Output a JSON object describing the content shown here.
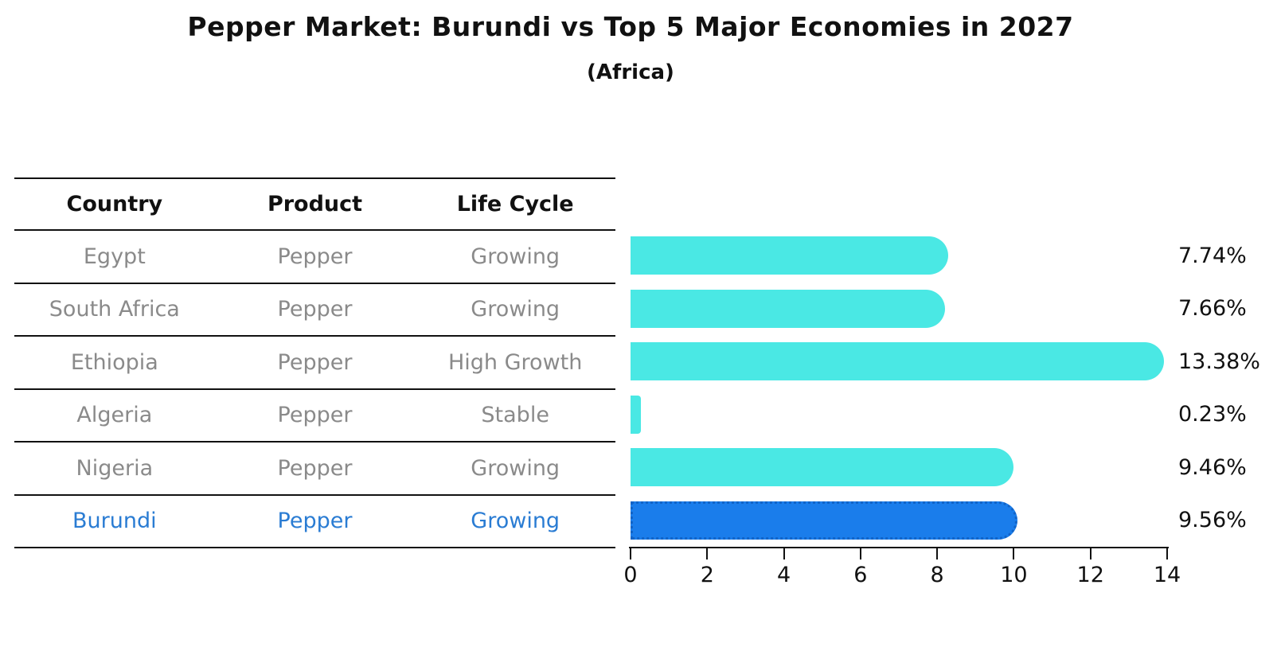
{
  "title": "Pepper Market: Burundi vs Top 5 Major Economies in 2027",
  "subtitle": "(Africa)",
  "table": {
    "columns": [
      "Country",
      "Product",
      "Life Cycle"
    ],
    "rows": [
      {
        "country": "Egypt",
        "product": "Pepper",
        "life_cycle": "Growing",
        "highlight": false
      },
      {
        "country": "South Africa",
        "product": "Pepper",
        "life_cycle": "Growing",
        "highlight": false
      },
      {
        "country": "Ethiopia",
        "product": "Pepper",
        "life_cycle": "High Growth",
        "highlight": false
      },
      {
        "country": "Algeria",
        "product": "Pepper",
        "life_cycle": "Stable",
        "highlight": false
      },
      {
        "country": "Nigeria",
        "product": "Pepper",
        "life_cycle": "Growing",
        "highlight": false
      },
      {
        "country": "Burundi",
        "product": "Pepper",
        "life_cycle": "Growing",
        "highlight": true
      }
    ]
  },
  "chart_data": {
    "type": "bar",
    "orientation": "horizontal",
    "title": "Pepper Market: Burundi vs Top 5 Major Economies in 2027 (Africa)",
    "categories": [
      "Egypt",
      "South Africa",
      "Ethiopia",
      "Algeria",
      "Nigeria",
      "Burundi"
    ],
    "values": [
      7.74,
      7.66,
      13.38,
      0.23,
      9.46,
      9.56
    ],
    "value_labels": [
      "7.74%",
      "7.66%",
      "13.38%",
      "0.23%",
      "9.46%",
      "9.56%"
    ],
    "xlim": [
      0,
      14
    ],
    "x_ticks": [
      0,
      2,
      4,
      6,
      8,
      10,
      12,
      14
    ],
    "grid": false,
    "legend": false,
    "highlight_index": 5,
    "bar_color": "#4AE8E4",
    "highlight_bar_color": "#1A7DEB",
    "highlight_bar_edge_color": "#1164C8"
  },
  "colors": {
    "text": "#111111",
    "row_text": "#8a8a8a",
    "highlight_text": "#2A7CD3",
    "line": "#111111"
  }
}
